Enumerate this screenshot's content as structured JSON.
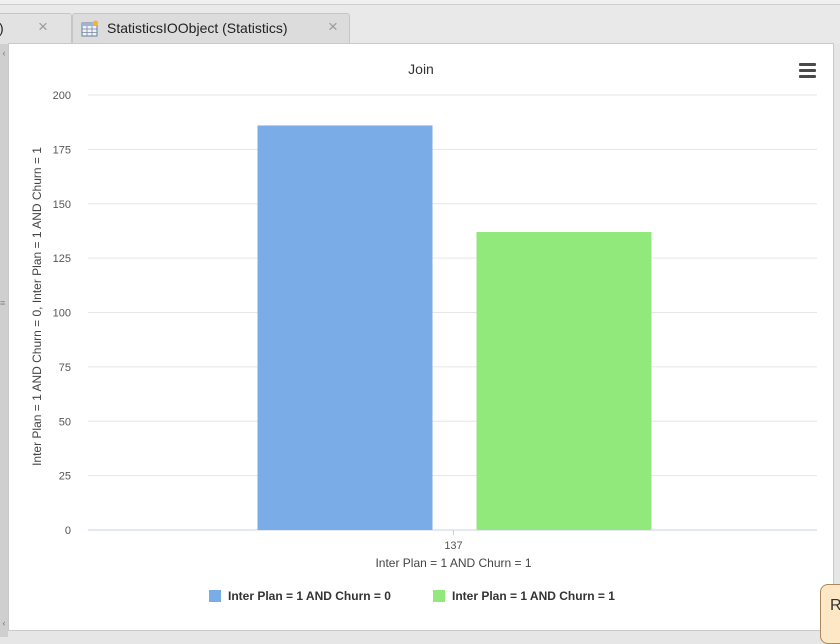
{
  "tabs": [
    {
      "label": ")",
      "close": "×"
    },
    {
      "label": "StatisticsIOObject (Statistics)",
      "close": "×"
    }
  ],
  "left_bar": {
    "handle": "≡",
    "chevron_up": "‹",
    "chevron_down": "‹"
  },
  "chart_data": {
    "type": "bar",
    "title": "Join",
    "xlabel": "Inter Plan = 1 AND Churn = 1",
    "ylabel": "Inter Plan = 1 AND Churn = 0, Inter Plan = 1 AND Churn = 1",
    "categories": [
      "137"
    ],
    "ylim": [
      0,
      200
    ],
    "yticks": [
      0,
      25,
      50,
      75,
      100,
      125,
      150,
      175,
      200
    ],
    "grid": true,
    "legend_position": "bottom",
    "series": [
      {
        "name": "Inter Plan = 1 AND Churn = 0",
        "values": [
          186
        ],
        "color": "#7aace8"
      },
      {
        "name": "Inter Plan = 1 AND Churn = 1",
        "values": [
          137
        ],
        "color": "#90e97a"
      }
    ]
  },
  "floating_button": {
    "label": "R"
  }
}
